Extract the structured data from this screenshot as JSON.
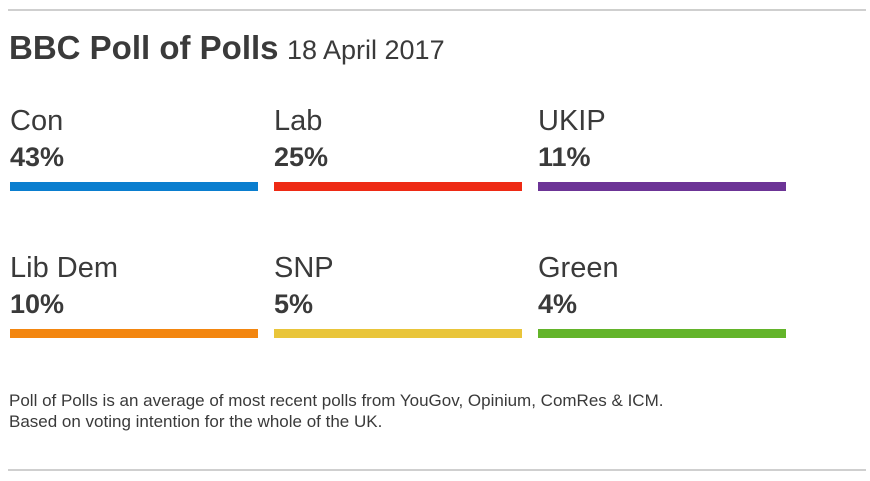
{
  "header": {
    "title": "BBC Poll of Polls",
    "date": "18 April 2017"
  },
  "chart_data": {
    "type": "bar",
    "title": "BBC Poll of Polls",
    "subtitle": "18 April 2017",
    "categories": [
      "Con",
      "Lab",
      "UKIP",
      "Lib Dem",
      "SNP",
      "Green"
    ],
    "values": [
      43,
      25,
      11,
      10,
      5,
      4
    ],
    "value_labels": [
      "43%",
      "25%",
      "11%",
      "10%",
      "5%",
      "4%"
    ],
    "colors": [
      "#0a7ecf",
      "#ee2a14",
      "#6c3496",
      "#f3860f",
      "#e9c53a",
      "#63b42a"
    ],
    "unit": "%"
  },
  "footnote": {
    "line1": "Poll of Polls is an average of most recent polls from YouGov, Opinium, ComRes & ICM.",
    "line2": "Based on voting intention for the whole of the UK."
  }
}
